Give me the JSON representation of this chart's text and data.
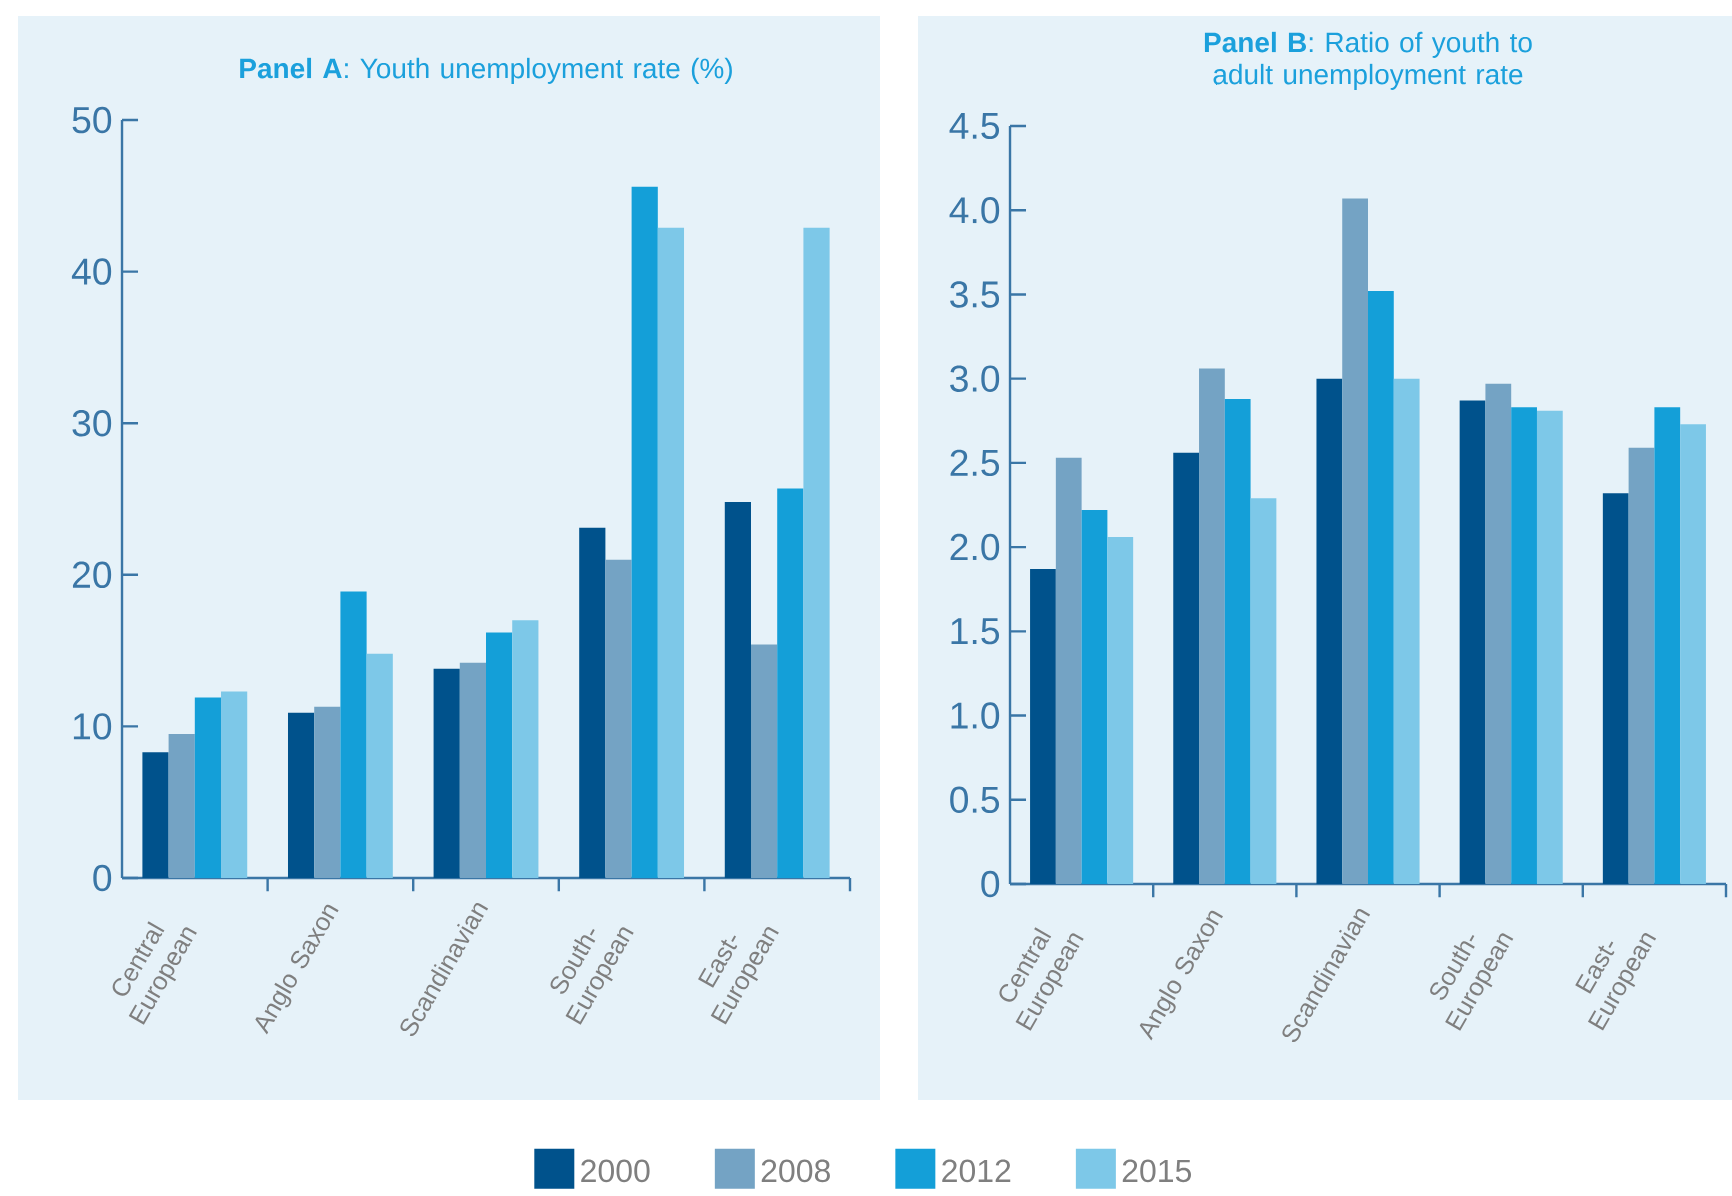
{
  "chart_data": [
    {
      "type": "bar",
      "title": "**Panel A**: Youth unemployment rate (%)",
      "categories": [
        "Central European",
        "Anglo Saxon",
        "Scandinavian",
        "South-European",
        "East-European"
      ],
      "series": [
        {
          "name": "2000",
          "color": "#00528c",
          "values": [
            8.3,
            10.9,
            13.8,
            23.1,
            24.8
          ]
        },
        {
          "name": "2008",
          "color": "#74a3c4",
          "values": [
            9.5,
            11.3,
            14.2,
            21.0,
            15.4
          ]
        },
        {
          "name": "2012",
          "color": "#149fd8",
          "values": [
            11.9,
            18.9,
            16.2,
            45.6,
            25.7
          ]
        },
        {
          "name": "2015",
          "color": "#7dc8e8",
          "values": [
            12.3,
            14.8,
            17.0,
            42.9,
            42.9
          ]
        }
      ],
      "ylim": [
        0,
        50
      ],
      "yticks": [
        0,
        10,
        20,
        30,
        40,
        50
      ],
      "grid": false,
      "legend": "bottom"
    },
    {
      "type": "bar",
      "title": "**Panel B**: Ratio of youth to adult unemployment rate",
      "categories": [
        "Central European",
        "Anglo Saxon",
        "Scandinavian",
        "South-European",
        "East-European"
      ],
      "series": [
        {
          "color": "#00528c",
          "values": [
            1.87,
            2.56,
            3.0,
            2.87,
            2.32
          ]
        },
        {
          "color": "#74a3c4",
          "values": [
            2.53,
            3.06,
            4.07,
            2.97,
            2.59
          ]
        },
        {
          "color": "#149fd8",
          "values": [
            2.22,
            2.88,
            3.52,
            2.83,
            2.83
          ]
        },
        {
          "color": "#7dc8e8",
          "values": [
            2.06,
            2.29,
            3.0,
            2.81,
            2.73
          ]
        }
      ],
      "ylim": [
        0,
        4.5
      ],
      "yticks": [
        0,
        0.5,
        {
          "value": 1,
          "label": "1.0"
        },
        1.5,
        {
          "value": 2,
          "label": "2.0"
        },
        2.5,
        {
          "value": 3,
          "label": "3.0"
        },
        3.5,
        {
          "value": 4,
          "label": "4.0"
        },
        4.5
      ],
      "grid": false
    }
  ]
}
